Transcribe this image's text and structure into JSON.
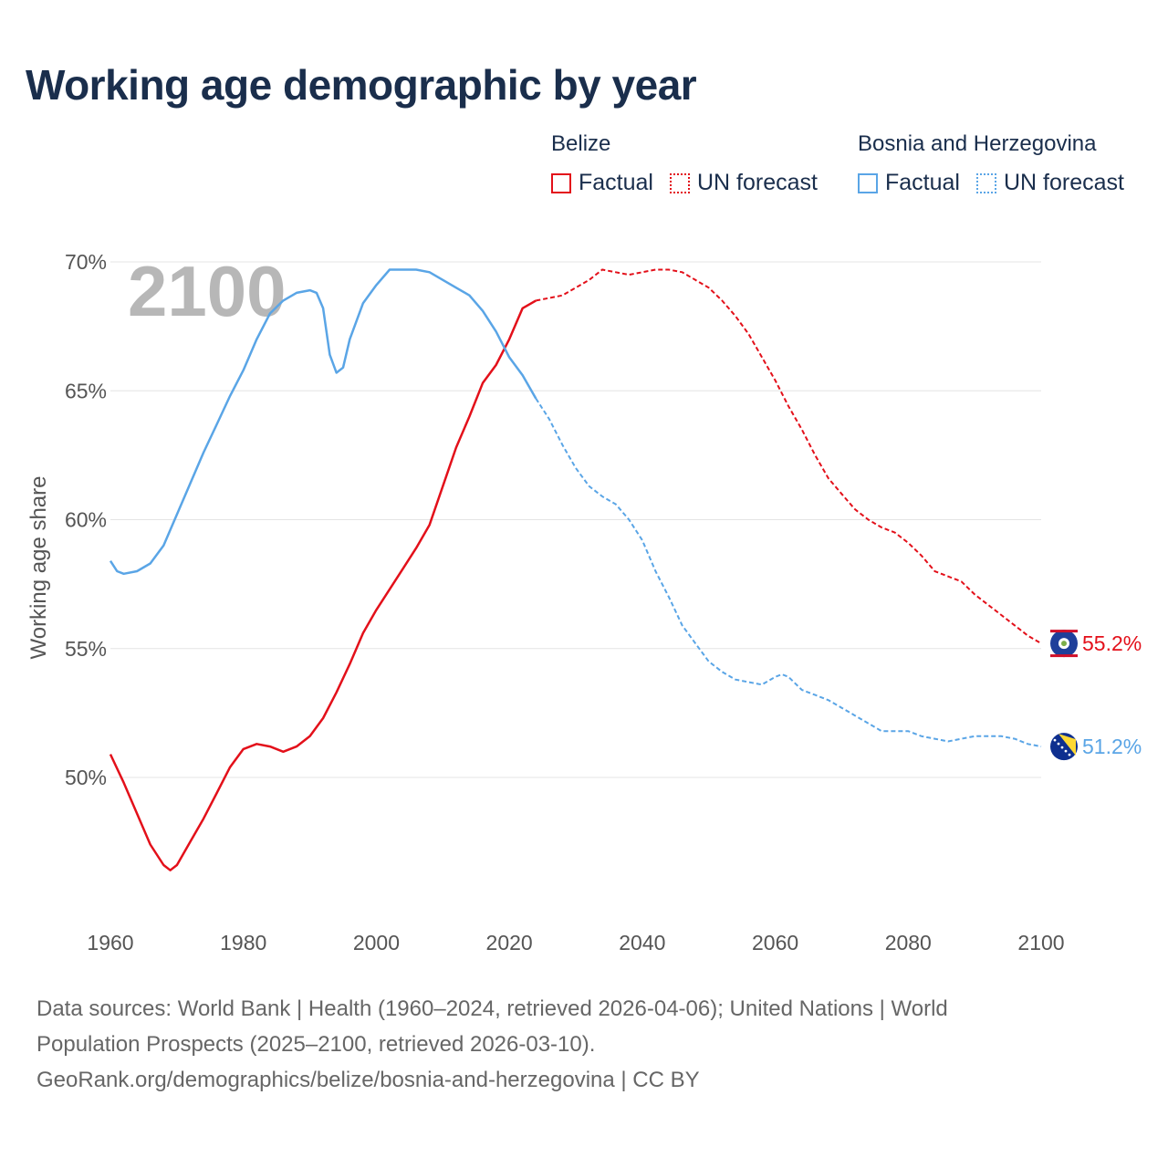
{
  "title": "Working age demographic by year",
  "legend": {
    "groups": [
      {
        "name": "Belize",
        "factual": "Factual",
        "forecast": "UN forecast",
        "color": "#e3101a"
      },
      {
        "name": "Bosnia and Herzegovina",
        "factual": "Factual",
        "forecast": "UN forecast",
        "color": "#5aa5e6"
      }
    ]
  },
  "footer": {
    "line1": "Data sources: World Bank | Health (1960–2024, retrieved 2026-04-06); United Nations | World Population Prospects (2025–2100, retrieved 2026-03-10).",
    "line2": "GeoRank.org/demographics/belize/bosnia-and-herzegovina | CC BY"
  },
  "chart_data": {
    "type": "line",
    "title": "Working age demographic by year",
    "xlabel": "",
    "ylabel": "Working age share",
    "year_display": "2100",
    "xlim": [
      1960,
      2100
    ],
    "ylim": [
      45,
      70
    ],
    "x_ticks": [
      1960,
      1980,
      2000,
      2020,
      2040,
      2060,
      2080,
      2100
    ],
    "y_ticks": [
      50,
      55,
      60,
      65,
      70
    ],
    "y_tick_labels": [
      "50%",
      "55%",
      "60%",
      "65%",
      "70%"
    ],
    "factual_end_year": 2024,
    "series": [
      {
        "name": "Belize",
        "color": "#e3101a",
        "end_label": "55.2%",
        "points": [
          [
            1960,
            50.9
          ],
          [
            1962,
            49.8
          ],
          [
            1964,
            48.6
          ],
          [
            1966,
            47.4
          ],
          [
            1968,
            46.6
          ],
          [
            1969,
            46.4
          ],
          [
            1970,
            46.6
          ],
          [
            1972,
            47.5
          ],
          [
            1974,
            48.4
          ],
          [
            1976,
            49.4
          ],
          [
            1978,
            50.4
          ],
          [
            1980,
            51.1
          ],
          [
            1982,
            51.3
          ],
          [
            1984,
            51.2
          ],
          [
            1986,
            51.0
          ],
          [
            1988,
            51.2
          ],
          [
            1990,
            51.6
          ],
          [
            1992,
            52.3
          ],
          [
            1994,
            53.3
          ],
          [
            1996,
            54.4
          ],
          [
            1998,
            55.6
          ],
          [
            2000,
            56.5
          ],
          [
            2002,
            57.3
          ],
          [
            2004,
            58.1
          ],
          [
            2006,
            58.9
          ],
          [
            2008,
            59.8
          ],
          [
            2010,
            61.3
          ],
          [
            2012,
            62.8
          ],
          [
            2014,
            64.0
          ],
          [
            2016,
            65.3
          ],
          [
            2018,
            66.0
          ],
          [
            2020,
            67.0
          ],
          [
            2022,
            68.2
          ],
          [
            2024,
            68.5
          ],
          [
            2026,
            68.6
          ],
          [
            2028,
            68.7
          ],
          [
            2030,
            69.0
          ],
          [
            2032,
            69.3
          ],
          [
            2034,
            69.7
          ],
          [
            2036,
            69.6
          ],
          [
            2038,
            69.5
          ],
          [
            2040,
            69.6
          ],
          [
            2042,
            69.7
          ],
          [
            2044,
            69.7
          ],
          [
            2046,
            69.6
          ],
          [
            2048,
            69.3
          ],
          [
            2050,
            69.0
          ],
          [
            2052,
            68.5
          ],
          [
            2054,
            67.9
          ],
          [
            2056,
            67.2
          ],
          [
            2058,
            66.3
          ],
          [
            2060,
            65.4
          ],
          [
            2062,
            64.4
          ],
          [
            2064,
            63.5
          ],
          [
            2066,
            62.5
          ],
          [
            2068,
            61.6
          ],
          [
            2070,
            61.0
          ],
          [
            2072,
            60.4
          ],
          [
            2074,
            60.0
          ],
          [
            2076,
            59.7
          ],
          [
            2078,
            59.5
          ],
          [
            2080,
            59.1
          ],
          [
            2082,
            58.6
          ],
          [
            2084,
            58.0
          ],
          [
            2086,
            57.8
          ],
          [
            2088,
            57.6
          ],
          [
            2090,
            57.1
          ],
          [
            2092,
            56.7
          ],
          [
            2094,
            56.3
          ],
          [
            2096,
            55.9
          ],
          [
            2098,
            55.5
          ],
          [
            2100,
            55.2
          ]
        ]
      },
      {
        "name": "Bosnia and Herzegovina",
        "color": "#5aa5e6",
        "end_label": "51.2%",
        "points": [
          [
            1960,
            58.4
          ],
          [
            1961,
            58.0
          ],
          [
            1962,
            57.9
          ],
          [
            1964,
            58.0
          ],
          [
            1966,
            58.3
          ],
          [
            1968,
            59.0
          ],
          [
            1970,
            60.2
          ],
          [
            1972,
            61.4
          ],
          [
            1974,
            62.6
          ],
          [
            1976,
            63.7
          ],
          [
            1978,
            64.8
          ],
          [
            1980,
            65.8
          ],
          [
            1982,
            67.0
          ],
          [
            1984,
            68.0
          ],
          [
            1986,
            68.5
          ],
          [
            1988,
            68.8
          ],
          [
            1990,
            68.9
          ],
          [
            1991,
            68.8
          ],
          [
            1992,
            68.2
          ],
          [
            1993,
            66.4
          ],
          [
            1994,
            65.7
          ],
          [
            1995,
            65.9
          ],
          [
            1996,
            67.0
          ],
          [
            1998,
            68.4
          ],
          [
            2000,
            69.1
          ],
          [
            2002,
            69.7
          ],
          [
            2004,
            69.7
          ],
          [
            2006,
            69.7
          ],
          [
            2008,
            69.6
          ],
          [
            2010,
            69.3
          ],
          [
            2012,
            69.0
          ],
          [
            2014,
            68.7
          ],
          [
            2016,
            68.1
          ],
          [
            2018,
            67.3
          ],
          [
            2020,
            66.3
          ],
          [
            2022,
            65.6
          ],
          [
            2024,
            64.7
          ],
          [
            2026,
            63.9
          ],
          [
            2028,
            62.9
          ],
          [
            2030,
            62.0
          ],
          [
            2032,
            61.3
          ],
          [
            2034,
            60.9
          ],
          [
            2036,
            60.6
          ],
          [
            2038,
            60.0
          ],
          [
            2040,
            59.2
          ],
          [
            2042,
            58.0
          ],
          [
            2044,
            57.0
          ],
          [
            2046,
            55.9
          ],
          [
            2048,
            55.2
          ],
          [
            2050,
            54.5
          ],
          [
            2052,
            54.1
          ],
          [
            2054,
            53.8
          ],
          [
            2056,
            53.7
          ],
          [
            2058,
            53.6
          ],
          [
            2060,
            53.9
          ],
          [
            2061,
            54.0
          ],
          [
            2062,
            53.9
          ],
          [
            2064,
            53.4
          ],
          [
            2066,
            53.2
          ],
          [
            2068,
            53.0
          ],
          [
            2070,
            52.7
          ],
          [
            2072,
            52.4
          ],
          [
            2074,
            52.1
          ],
          [
            2076,
            51.8
          ],
          [
            2078,
            51.8
          ],
          [
            2080,
            51.8
          ],
          [
            2082,
            51.6
          ],
          [
            2084,
            51.5
          ],
          [
            2086,
            51.4
          ],
          [
            2088,
            51.5
          ],
          [
            2090,
            51.6
          ],
          [
            2092,
            51.6
          ],
          [
            2094,
            51.6
          ],
          [
            2096,
            51.5
          ],
          [
            2098,
            51.3
          ],
          [
            2100,
            51.2
          ]
        ]
      }
    ]
  }
}
